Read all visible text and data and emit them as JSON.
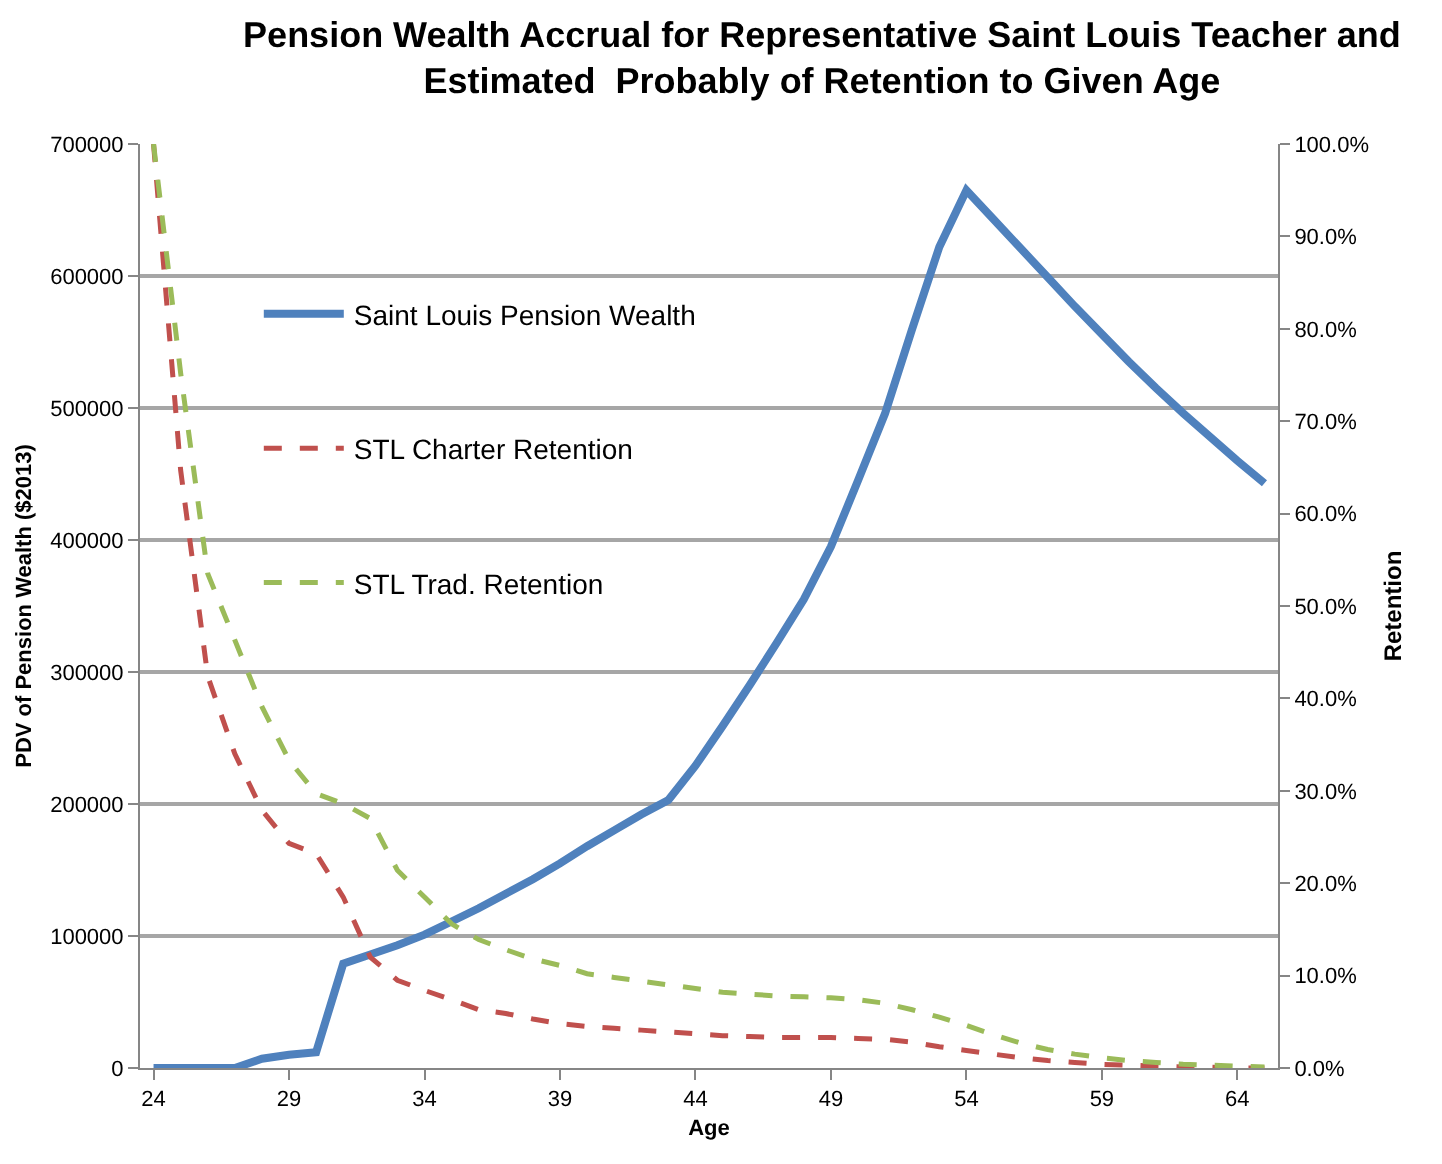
{
  "chart_data": {
    "type": "line",
    "title": "Pension Wealth Accrual for Representative Saint Louis Teacher and\nEstimated  Probably of Retention to Given Age",
    "xlabel": "Age",
    "ylabel": "PDV of Pension Wealth ($2013)",
    "y2label": "Retention",
    "x": [
      24,
      25,
      26,
      27,
      28,
      29,
      30,
      31,
      32,
      33,
      34,
      35,
      36,
      37,
      38,
      39,
      40,
      41,
      42,
      43,
      44,
      45,
      46,
      47,
      48,
      49,
      50,
      51,
      52,
      53,
      54,
      55,
      56,
      57,
      58,
      59,
      60,
      61,
      62,
      63,
      64,
      65
    ],
    "series": [
      {
        "name": "Saint Louis Pension Wealth",
        "color": "#4f81bd",
        "line_style": "solid",
        "values": [
          0,
          0,
          0,
          0,
          7000,
          10000,
          12000,
          79000,
          86000,
          93000,
          101000,
          111000,
          121000,
          132000,
          143000,
          155000,
          168000,
          180000,
          192000,
          203000,
          229000,
          259000,
          290000,
          322000,
          355000,
          395000,
          445000,
          496000,
          560000,
          622000,
          665000,
          643000,
          621000,
          599000,
          577000,
          556000,
          535000,
          515000,
          496000,
          478000,
          460000,
          443000
        ]
      },
      {
        "name": "STL Charter Retention",
        "color": "#c0504d",
        "line_style": "dashed",
        "axis": "y2",
        "values": [
          100,
          64.7,
          42.4,
          34,
          27.9,
          24.3,
          23.2,
          18.5,
          12,
          9.5,
          8.4,
          7.4,
          6.3,
          5.9,
          5.3,
          4.8,
          4.5,
          4.3,
          4.1,
          3.9,
          3.7,
          3.5,
          3.4,
          3.3,
          3.3,
          3.3,
          3.2,
          3.1,
          2.8,
          2.3,
          1.9,
          1.5,
          1.1,
          0.8,
          0.6,
          0.4,
          0.3,
          0.2,
          0.1,
          0.1,
          0,
          0
        ]
      },
      {
        "name": "STL Trad. Retention",
        "color": "#9bbb59",
        "line_style": "dashed",
        "axis": "y2",
        "values": [
          100,
          75.2,
          53.5,
          46.3,
          39.1,
          33.3,
          29.7,
          28.6,
          27,
          21.4,
          18.5,
          15.6,
          13.9,
          12.8,
          11.8,
          11.1,
          10.2,
          9.8,
          9.4,
          9,
          8.6,
          8.2,
          8,
          7.8,
          7.7,
          7.6,
          7.4,
          7,
          6.3,
          5.5,
          4.6,
          3.6,
          2.7,
          2,
          1.5,
          1.1,
          0.8,
          0.6,
          0.4,
          0.3,
          0.2,
          0.1
        ]
      }
    ],
    "xlim": [
      23.5,
      65.5
    ],
    "xticks": [
      24,
      29,
      34,
      39,
      44,
      49,
      54,
      59,
      64
    ],
    "ylim": [
      0,
      700000
    ],
    "yticks": [
      0,
      100000,
      200000,
      300000,
      400000,
      500000,
      600000,
      700000
    ],
    "y2lim": [
      0,
      100
    ],
    "y2ticks": [
      {
        "value": 0,
        "label": "0.0%"
      },
      {
        "value": 10,
        "label": "10.0%"
      },
      {
        "value": 20,
        "label": "20.0%"
      },
      {
        "value": 30,
        "label": "30.0%"
      },
      {
        "value": 40,
        "label": "40.0%"
      },
      {
        "value": 50,
        "label": "50.0%"
      },
      {
        "value": 60,
        "label": "60.0%"
      },
      {
        "value": 70,
        "label": "70.0%"
      },
      {
        "value": 80,
        "label": "80.0%"
      },
      {
        "value": 90,
        "label": "90.0%"
      },
      {
        "value": 100,
        "label": "100.0%"
      }
    ],
    "grid": "y",
    "legend": "top left",
    "marker": "none"
  }
}
